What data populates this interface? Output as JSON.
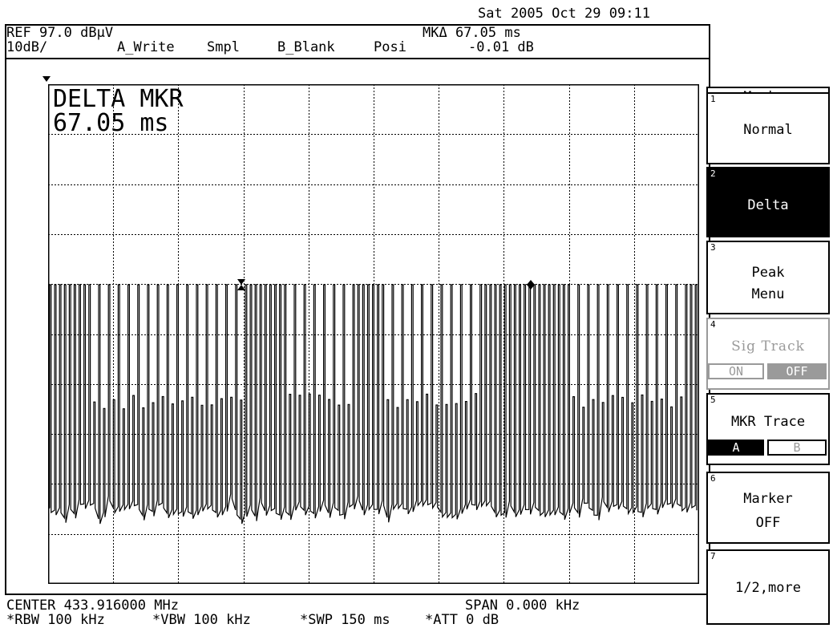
{
  "header": {
    "datetime": "Sat 2005 Oct 29 09:11",
    "ref_level": "REF 97.0 dBµV",
    "scale": "10dB/",
    "trace_mode": "A_Write",
    "detector": "Smpl",
    "trace_b": "B_Blank",
    "detector_b": "Posi",
    "marker_delta_time": "MKΔ 67.05 ms",
    "marker_delta_level": "-0.01 dB"
  },
  "display": {
    "delta_marker_title": "DELTA MKR",
    "delta_marker_value": "67.05 ms"
  },
  "footer": {
    "center": "CENTER 433.916000 MHz",
    "span": "SPAN 0.000 kHz",
    "rbw": "*RBW 100 kHz",
    "vbw": "*VBW 100 kHz",
    "sweep": "*SWP 150 ms",
    "att": "*ATT 0 dB"
  },
  "menu": {
    "title": "Marker",
    "keys": [
      {
        "num": "1",
        "line1": "Normal",
        "line2": ""
      },
      {
        "num": "2",
        "line1": "Delta",
        "line2": ""
      },
      {
        "num": "3",
        "line1": "Peak",
        "line2": "Menu"
      },
      {
        "num": "4",
        "line1": "Sig Track",
        "on": "ON",
        "off": "OFF"
      },
      {
        "num": "5",
        "line1": "MKR Trace",
        "a": "A",
        "b": "B"
      },
      {
        "num": "6",
        "line1": "Marker",
        "line2": "OFF"
      },
      {
        "num": "7",
        "line1": "1/2,more",
        "line2": ""
      }
    ]
  },
  "chart_data": {
    "type": "line",
    "x_span_ms": 150,
    "y_ref_dbuv": 97.0,
    "y_scale_db_per_div": 10,
    "grid": true,
    "delta_marker_ms": 67.05,
    "colors": {
      "trace": "#000000",
      "grid": "#000000"
    }
  }
}
